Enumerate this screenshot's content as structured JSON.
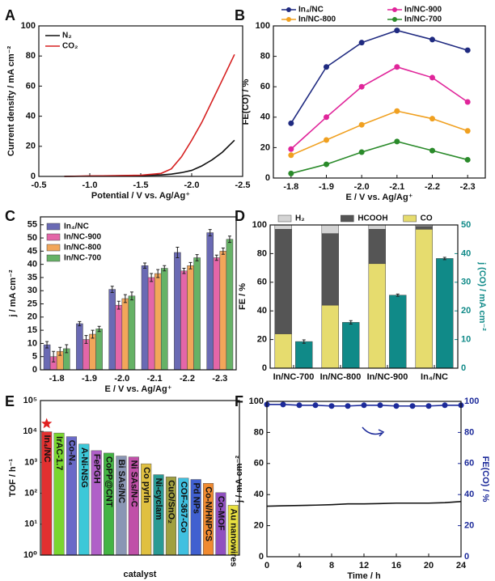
{
  "chart_data": [
    {
      "type": "line",
      "panel": "A",
      "xlabel": "Potential / V vs. Ag/Ag⁺",
      "ylabel": "Current density / mA cm⁻²",
      "x": [
        -0.75,
        -1.0,
        -1.25,
        -1.5,
        -1.7,
        -1.8,
        -1.9,
        -2.0,
        -2.1,
        -2.2,
        -2.3,
        -2.42
      ],
      "series": [
        {
          "name": "N₂",
          "color": "#111111",
          "values": [
            0,
            0.2,
            0.4,
            0.6,
            1,
            1.5,
            2.5,
            4,
            7,
            11,
            16,
            24
          ]
        },
        {
          "name": "CO₂",
          "color": "#d62020",
          "values": [
            0,
            0.3,
            0.5,
            0.8,
            2,
            5,
            13,
            24,
            36,
            50,
            64,
            81
          ]
        }
      ],
      "xlim": [
        -0.5,
        -2.5
      ],
      "xticks": [
        -0.5,
        {
          "value": -1.0,
          "label": "-1.0"
        },
        -1.5,
        {
          "value": -2.0,
          "label": "-2.0"
        },
        -2.5
      ],
      "ylim": [
        0,
        100
      ],
      "yticks": [
        0,
        20,
        40,
        60,
        80,
        100
      ],
      "legend": "upper left"
    },
    {
      "type": "line",
      "panel": "B",
      "xlabel": "E / V vs. Ag/Ag⁺",
      "ylabel": "FE(CO) / %",
      "categories": [
        "-1.8",
        "-1.9",
        "-2.0",
        "-2.1",
        "-2.2",
        "-2.3"
      ],
      "series": [
        {
          "name": "In₄/NC",
          "color": "#1f2a80",
          "values": [
            36,
            73,
            89,
            97,
            91,
            84
          ]
        },
        {
          "name": "In/NC-900",
          "color": "#e0259a",
          "values": [
            19,
            40,
            60,
            73,
            66,
            50
          ]
        },
        {
          "name": "In/NC-800",
          "color": "#f0a020",
          "values": [
            15,
            25,
            35,
            44,
            39,
            31
          ]
        },
        {
          "name": "In/NC-700",
          "color": "#2a8a2a",
          "values": [
            3,
            9,
            17,
            24,
            18,
            12
          ]
        }
      ],
      "ylim": [
        0,
        100
      ],
      "yticks": [
        0,
        20,
        40,
        60,
        80,
        100
      ],
      "markers": true,
      "legend": "top"
    },
    {
      "type": "bar",
      "panel": "C",
      "xlabel": "E / V vs. Ag/Ag⁺",
      "ylabel": "j / mA cm⁻²",
      "categories": [
        "-1.8",
        "-1.9",
        "-2.0",
        "-2.1",
        "-2.2",
        "-2.3"
      ],
      "series": [
        {
          "name": "In₄/NC",
          "color": "#6a6ab4",
          "values": [
            9.5,
            17.5,
            30.5,
            39.5,
            44.5,
            52
          ],
          "errors": [
            1.2,
            0.8,
            1.2,
            1,
            2,
            1.2
          ]
        },
        {
          "name": "In/NC-900",
          "color": "#e466a8",
          "values": [
            5,
            11.5,
            24.5,
            35,
            37.5,
            42.5
          ],
          "errors": [
            2,
            1.5,
            1.5,
            1.5,
            1,
            1
          ]
        },
        {
          "name": "In/NC-800",
          "color": "#f2a65a",
          "values": [
            7,
            13.5,
            27,
            36.5,
            39.5,
            45
          ],
          "errors": [
            1.5,
            1.5,
            1.5,
            1.5,
            1.2,
            1.2
          ]
        },
        {
          "name": "In/NC-700",
          "color": "#66b266",
          "values": [
            8,
            15.5,
            28,
            38.5,
            42.5,
            49.5
          ],
          "errors": [
            1.5,
            1,
            1.5,
            1,
            1.2,
            1.2
          ]
        }
      ],
      "ylim": [
        0,
        58
      ],
      "yticks": [
        0,
        5,
        10,
        15,
        20,
        25,
        30,
        35,
        40,
        45,
        50,
        55
      ],
      "legend": "upper left"
    },
    {
      "type": "bar",
      "panel": "D",
      "ylabel": "FE / %",
      "y2label": "j (CO) / mA cm⁻²",
      "categories": [
        "In/NC-700",
        "In/NC-800",
        "In/NC-900",
        "In₄/NC"
      ],
      "series": [
        {
          "name": "CO",
          "color": "#e6dc6e",
          "values": [
            24,
            44,
            73,
            97
          ]
        },
        {
          "name": "HCOOH",
          "color": "#555555",
          "values": [
            73,
            50,
            24,
            2
          ]
        },
        {
          "name": "H₂",
          "color": "#d4d4d4",
          "values": [
            3,
            6,
            3,
            1
          ]
        },
        {
          "color": "#108a88",
          "values": [
            9.3,
            16,
            25.5,
            38.3
          ],
          "errors": [
            0.6,
            0.6,
            0.4,
            0.4
          ],
          "axis": "y2"
        }
      ],
      "stacked": true,
      "ylim": [
        0,
        100
      ],
      "yticks": [
        0,
        20,
        40,
        60,
        80,
        100
      ],
      "y2lim": [
        0,
        50
      ],
      "y2ticks": [
        0,
        10,
        20,
        30,
        40,
        50
      ],
      "legend": "top"
    },
    {
      "type": "bar",
      "panel": "E",
      "xlabel": "catalyst",
      "ylabel": "TOF / h⁻¹",
      "log": true,
      "categories": [
        "In₄/NC",
        "IrAC-1.7",
        "Co-N₄",
        "A-Ni-NSG",
        "FePGH",
        "CoPP@CNT",
        "Bi SAs/NC",
        "Ni SAs/N-C",
        "Co pyrln",
        "Ni-cyclam",
        "CuO/SnO₂",
        "COF-367-Co",
        "Pd NPs",
        "Co-N/HNPCS",
        "Co-MOF",
        "Au nanowires"
      ],
      "values": [
        9800,
        8900,
        6800,
        3900,
        2400,
        2000,
        1600,
        1500,
        900,
        400,
        340,
        310,
        280,
        210,
        105,
        41
      ],
      "colors": [
        "#e23030",
        "#7ad630",
        "#6a6ac8",
        "#3cc8d8",
        "#b060c8",
        "#44b444",
        "#8a96b4",
        "#c050a8",
        "#e0c040",
        "#2a9a94",
        "#a0a040",
        "#40c0e0",
        "#4060d0",
        "#f08a30",
        "#9050c0",
        "#e8e040"
      ],
      "category_labels": "inside",
      "ylim": [
        1,
        100000
      ],
      "yticks": [
        {
          "value": 1,
          "label": "10⁰"
        },
        {
          "value": 10,
          "label": "10¹"
        },
        {
          "value": 100,
          "label": "10²"
        },
        {
          "value": 1000,
          "label": "10³"
        },
        {
          "value": 10000,
          "label": "10⁴"
        },
        {
          "value": 100000,
          "label": "10⁵"
        }
      ]
    },
    {
      "type": "line",
      "panel": "F",
      "xlabel": "Time / h",
      "ylabel": "j / mA cm⁻²",
      "y2label": "FE(CO) / %",
      "x": [
        0,
        2,
        4,
        6,
        8,
        10,
        12,
        14,
        16,
        18,
        20,
        22,
        24
      ],
      "series": [
        {
          "color": "#111111",
          "values": [
            32.5,
            32.8,
            33,
            33.2,
            33.5,
            34,
            34,
            34.2,
            34.5,
            34.5,
            34.5,
            34.8,
            35.5
          ]
        },
        {
          "color": "#1c2a9a",
          "values": [
            98,
            98,
            97.5,
            97.5,
            97,
            97,
            97.5,
            97.5,
            97,
            97,
            97,
            97.5,
            97.5
          ],
          "axis": "y2",
          "markers": true
        }
      ],
      "xlim": [
        0,
        24
      ],
      "xticks": [
        0,
        4,
        8,
        12,
        16,
        20,
        24
      ],
      "ylim": [
        0,
        100
      ],
      "yticks": [
        0,
        20,
        40,
        60,
        80,
        100
      ],
      "y2lim": [
        0,
        100
      ],
      "y2ticks": [
        0,
        20,
        40,
        60,
        80,
        100
      ]
    }
  ]
}
